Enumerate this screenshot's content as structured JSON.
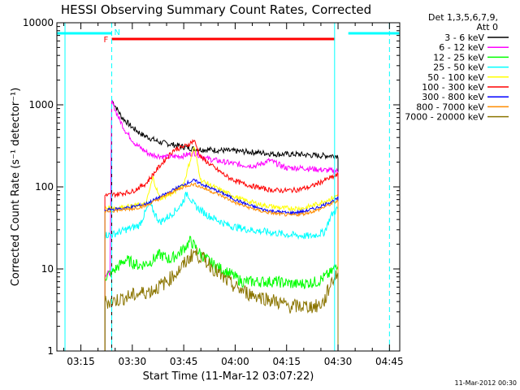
{
  "chart_data": {
    "type": "line",
    "title": "HESSI Observing Summary Count Rates, Corrected",
    "xlabel": "Start Time (11-Mar-12 03:07:22)",
    "ylabel": "Corrected Count Rate (s⁻¹ detector⁻¹)",
    "y_scale": "log",
    "ylim": [
      1,
      10000
    ],
    "y_ticks": [
      1,
      10,
      100,
      1000,
      10000
    ],
    "y_tick_labels": [
      "1",
      "10",
      "100",
      "1000",
      "10000"
    ],
    "x_range_min": [
      8,
      108
    ],
    "x_ticks_min": [
      15,
      30,
      45,
      60,
      75,
      90,
      105
    ],
    "x_tick_labels": [
      "03:15",
      "03:30",
      "03:45",
      "04:00",
      "04:15",
      "04:30",
      "04:45"
    ],
    "legend_header": [
      "Det 1,3,5,6,7,9,",
      "Att 0"
    ],
    "footer_date": "11-Mar-2012 00:30",
    "legend_position": "right",
    "series": [
      {
        "name": "3 - 6 keV",
        "color": "#000000",
        "x": [
          23,
          24,
          27,
          30,
          33,
          38,
          43,
          48,
          55,
          62,
          68,
          72,
          78,
          84,
          90
        ],
        "y": [
          null,
          1150,
          700,
          530,
          430,
          350,
          320,
          290,
          280,
          270,
          260,
          250,
          250,
          240,
          240
        ]
      },
      {
        "name": "6 - 12 keV",
        "color": "#ff00ff",
        "x": [
          22,
          23.5,
          24,
          26,
          28,
          31,
          35,
          40,
          45,
          48,
          52,
          57,
          62,
          66,
          70,
          75,
          80,
          86,
          90
        ],
        "y": [
          8.5,
          9,
          1100,
          700,
          480,
          330,
          250,
          230,
          240,
          260,
          220,
          200,
          185,
          180,
          210,
          170,
          170,
          160,
          155
        ]
      },
      {
        "name": "12 - 25 keV",
        "color": "#00ff00",
        "x": [
          22,
          24,
          28,
          32,
          35,
          38,
          41,
          44,
          47,
          50,
          54,
          58,
          62,
          66,
          72,
          78,
          84,
          88,
          90
        ],
        "y": [
          8,
          9,
          13,
          11,
          12,
          15,
          13,
          16,
          22,
          15,
          11,
          9,
          7,
          7,
          7,
          6.5,
          7,
          9,
          12
        ]
      },
      {
        "name": "25 - 50 keV",
        "color": "#00ffff",
        "x": [
          22,
          24,
          28,
          32,
          35,
          38,
          41,
          44,
          46,
          48,
          52,
          58,
          64,
          70,
          76,
          82,
          86,
          88,
          90
        ],
        "y": [
          26,
          26,
          30,
          34,
          62,
          37,
          45,
          58,
          85,
          60,
          45,
          34,
          30,
          28,
          26,
          25,
          28,
          45,
          55
        ]
      },
      {
        "name": "50 - 100 keV",
        "color": "#ffff00",
        "x": [
          22,
          26,
          30,
          34,
          36,
          38,
          42,
          45,
          48,
          50,
          56,
          62,
          68,
          74,
          80,
          84,
          88,
          90
        ],
        "y": [
          55,
          56,
          58,
          62,
          130,
          72,
          84,
          110,
          310,
          120,
          90,
          70,
          60,
          55,
          55,
          62,
          72,
          80
        ]
      },
      {
        "name": "100 - 300 keV",
        "color": "#ff0000",
        "x": [
          22,
          26,
          30,
          34,
          38,
          42,
          46,
          48,
          50,
          54,
          58,
          62,
          66,
          70,
          74,
          78,
          82,
          86,
          90
        ],
        "y": [
          78,
          82,
          88,
          110,
          180,
          280,
          320,
          370,
          230,
          170,
          130,
          110,
          100,
          92,
          90,
          92,
          100,
          120,
          140
        ]
      },
      {
        "name": "300 - 800 keV",
        "color": "#0000ff",
        "x": [
          22,
          26,
          30,
          34,
          38,
          42,
          46,
          48,
          52,
          56,
          60,
          64,
          68,
          72,
          76,
          80,
          84,
          88,
          90
        ],
        "y": [
          52,
          54,
          57,
          62,
          75,
          92,
          112,
          120,
          100,
          85,
          70,
          60,
          53,
          50,
          48,
          50,
          56,
          66,
          72
        ]
      },
      {
        "name": "800 - 7000 keV",
        "color": "#ff8c00",
        "x": [
          22,
          26,
          30,
          34,
          38,
          42,
          46,
          48,
          52,
          56,
          60,
          64,
          68,
          72,
          76,
          80,
          84,
          88,
          90
        ],
        "y": [
          50,
          52,
          54,
          59,
          72,
          88,
          104,
          108,
          92,
          78,
          64,
          56,
          50,
          47,
          45,
          47,
          52,
          62,
          68
        ]
      },
      {
        "name": "7000 - 20000 keV",
        "color": "#8b7500",
        "x": [
          22,
          24,
          28,
          32,
          36,
          40,
          44,
          48,
          52,
          56,
          60,
          64,
          68,
          72,
          76,
          80,
          84,
          86,
          88,
          90
        ],
        "y": [
          4,
          4,
          4.5,
          5,
          5.5,
          7,
          10,
          16,
          12,
          8,
          6,
          5,
          4.5,
          4,
          3.5,
          3.5,
          3.5,
          4,
          7,
          9
        ]
      }
    ],
    "annotations": [
      {
        "label": "F",
        "color": "#ff0000"
      },
      {
        "label": "N",
        "color": "#00ffff"
      }
    ],
    "night_bars": [
      [
        8,
        24
      ],
      [
        93,
        108
      ]
    ],
    "flare_bar": [
      24,
      89
    ],
    "saa_lines": [
      24,
      89,
      105
    ]
  }
}
